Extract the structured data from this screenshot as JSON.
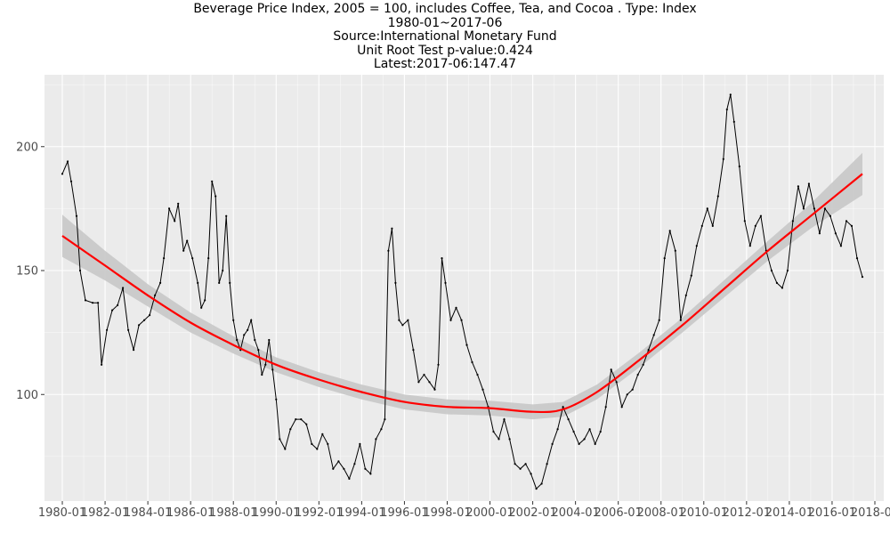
{
  "titles": {
    "line1": "Beverage Price Index, 2005 = 100, includes Coffee, Tea, and Cocoa . Type: Index",
    "line2": "1980-01~2017-06",
    "line3": "Source:International Monetary Fund",
    "line4": "Unit Root Test p-value:0.424",
    "line5": "Latest:2017-06:147.47"
  },
  "colors": {
    "panel": "#ebebeb",
    "grid_major": "#ffffff",
    "series": "#000000",
    "trend": "#ff0000",
    "band": "#c8c8c8"
  },
  "chart_data": {
    "type": "line",
    "title": "Beverage Price Index, 2005 = 100, includes Coffee, Tea, and Cocoa . Type: Index",
    "subtitle": [
      "1980-01~2017-06",
      "Source:International Monetary Fund",
      "Unit Root Test p-value:0.424",
      "Latest:2017-06:147.47"
    ],
    "xlabel": "",
    "ylabel": "",
    "xlim": [
      "1979-03",
      "2018-06"
    ],
    "ylim": [
      57,
      229
    ],
    "x_ticks": [
      "1980-01",
      "1982-01",
      "1984-01",
      "1986-01",
      "1988-01",
      "1990-01",
      "1992-01",
      "1994-01",
      "1996-01",
      "1998-01",
      "2000-01",
      "2002-01",
      "2004-01",
      "2006-01",
      "2008-01",
      "2010-01",
      "2012-01",
      "2014-01",
      "2016-01",
      "2018-01"
    ],
    "y_ticks": [
      100,
      150,
      200
    ],
    "grid": true,
    "series": [
      {
        "points": [
          [
            "1980-01",
            189
          ],
          [
            "1980-04",
            194
          ],
          [
            "1980-06",
            186
          ],
          [
            "1980-09",
            172
          ],
          [
            "1980-11",
            150
          ],
          [
            "1981-02",
            138
          ],
          [
            "1981-06",
            137
          ],
          [
            "1981-09",
            137
          ],
          [
            "1981-11",
            112
          ],
          [
            "1982-02",
            126
          ],
          [
            "1982-05",
            134
          ],
          [
            "1982-08",
            136
          ],
          [
            "1982-11",
            143
          ],
          [
            "1983-02",
            126
          ],
          [
            "1983-05",
            118
          ],
          [
            "1983-08",
            128
          ],
          [
            "1983-11",
            130
          ],
          [
            "1984-02",
            132
          ],
          [
            "1984-05",
            140
          ],
          [
            "1984-08",
            145
          ],
          [
            "1984-10",
            155
          ],
          [
            "1985-01",
            175
          ],
          [
            "1985-04",
            170
          ],
          [
            "1985-06",
            177
          ],
          [
            "1985-09",
            158
          ],
          [
            "1985-11",
            162
          ],
          [
            "1986-02",
            155
          ],
          [
            "1986-05",
            145
          ],
          [
            "1986-07",
            135
          ],
          [
            "1986-09",
            138
          ],
          [
            "1986-11",
            155
          ],
          [
            "1987-01",
            186
          ],
          [
            "1987-03",
            180
          ],
          [
            "1987-05",
            145
          ],
          [
            "1987-07",
            150
          ],
          [
            "1987-09",
            172
          ],
          [
            "1987-11",
            145
          ],
          [
            "1988-01",
            130
          ],
          [
            "1988-03",
            122
          ],
          [
            "1988-05",
            118
          ],
          [
            "1988-07",
            124
          ],
          [
            "1988-09",
            126
          ],
          [
            "1988-11",
            130
          ],
          [
            "1989-01",
            122
          ],
          [
            "1989-03",
            118
          ],
          [
            "1989-05",
            108
          ],
          [
            "1989-07",
            112
          ],
          [
            "1989-09",
            122
          ],
          [
            "1989-11",
            110
          ],
          [
            "1990-01",
            98
          ],
          [
            "1990-03",
            82
          ],
          [
            "1990-06",
            78
          ],
          [
            "1990-09",
            86
          ],
          [
            "1990-12",
            90
          ],
          [
            "1991-03",
            90
          ],
          [
            "1991-06",
            88
          ],
          [
            "1991-09",
            80
          ],
          [
            "1991-12",
            78
          ],
          [
            "1992-03",
            84
          ],
          [
            "1992-06",
            80
          ],
          [
            "1992-09",
            70
          ],
          [
            "1992-12",
            73
          ],
          [
            "1993-03",
            70
          ],
          [
            "1993-06",
            66
          ],
          [
            "1993-09",
            72
          ],
          [
            "1993-12",
            80
          ],
          [
            "1994-03",
            70
          ],
          [
            "1994-06",
            68
          ],
          [
            "1994-09",
            82
          ],
          [
            "1994-12",
            86
          ],
          [
            "1995-02",
            90
          ],
          [
            "1995-04",
            158
          ],
          [
            "1995-06",
            167
          ],
          [
            "1995-08",
            145
          ],
          [
            "1995-10",
            130
          ],
          [
            "1995-12",
            128
          ],
          [
            "1996-03",
            130
          ],
          [
            "1996-06",
            118
          ],
          [
            "1996-09",
            105
          ],
          [
            "1996-12",
            108
          ],
          [
            "1997-03",
            105
          ],
          [
            "1997-06",
            102
          ],
          [
            "1997-08",
            112
          ],
          [
            "1997-10",
            155
          ],
          [
            "1997-12",
            145
          ],
          [
            "1998-03",
            130
          ],
          [
            "1998-06",
            135
          ],
          [
            "1998-09",
            130
          ],
          [
            "1998-12",
            120
          ],
          [
            "1999-03",
            113
          ],
          [
            "1999-06",
            108
          ],
          [
            "1999-09",
            102
          ],
          [
            "1999-12",
            95
          ],
          [
            "2000-03",
            85
          ],
          [
            "2000-06",
            82
          ],
          [
            "2000-09",
            90
          ],
          [
            "2000-12",
            82
          ],
          [
            "2001-03",
            72
          ],
          [
            "2001-06",
            70
          ],
          [
            "2001-09",
            72
          ],
          [
            "2001-12",
            68
          ],
          [
            "2002-03",
            62
          ],
          [
            "2002-06",
            64
          ],
          [
            "2002-09",
            72
          ],
          [
            "2002-12",
            80
          ],
          [
            "2003-03",
            86
          ],
          [
            "2003-06",
            95
          ],
          [
            "2003-09",
            90
          ],
          [
            "2003-12",
            85
          ],
          [
            "2004-03",
            80
          ],
          [
            "2004-06",
            82
          ],
          [
            "2004-09",
            86
          ],
          [
            "2004-12",
            80
          ],
          [
            "2005-03",
            85
          ],
          [
            "2005-06",
            95
          ],
          [
            "2005-09",
            110
          ],
          [
            "2005-12",
            105
          ],
          [
            "2006-03",
            95
          ],
          [
            "2006-06",
            100
          ],
          [
            "2006-09",
            102
          ],
          [
            "2006-12",
            108
          ],
          [
            "2007-03",
            112
          ],
          [
            "2007-06",
            118
          ],
          [
            "2007-09",
            124
          ],
          [
            "2007-12",
            130
          ],
          [
            "2008-03",
            155
          ],
          [
            "2008-06",
            166
          ],
          [
            "2008-09",
            158
          ],
          [
            "2008-12",
            130
          ],
          [
            "2009-03",
            140
          ],
          [
            "2009-06",
            148
          ],
          [
            "2009-09",
            160
          ],
          [
            "2009-12",
            168
          ],
          [
            "2010-03",
            175
          ],
          [
            "2010-06",
            168
          ],
          [
            "2010-09",
            180
          ],
          [
            "2010-12",
            195
          ],
          [
            "2011-02",
            215
          ],
          [
            "2011-04",
            221
          ],
          [
            "2011-06",
            210
          ],
          [
            "2011-09",
            192
          ],
          [
            "2011-12",
            170
          ],
          [
            "2012-03",
            160
          ],
          [
            "2012-06",
            168
          ],
          [
            "2012-09",
            172
          ],
          [
            "2012-12",
            158
          ],
          [
            "2013-03",
            150
          ],
          [
            "2013-06",
            145
          ],
          [
            "2013-09",
            143
          ],
          [
            "2013-12",
            150
          ],
          [
            "2014-03",
            170
          ],
          [
            "2014-06",
            184
          ],
          [
            "2014-09",
            175
          ],
          [
            "2014-12",
            185
          ],
          [
            "2015-03",
            175
          ],
          [
            "2015-06",
            165
          ],
          [
            "2015-09",
            175
          ],
          [
            "2015-12",
            172
          ],
          [
            "2016-03",
            165
          ],
          [
            "2016-06",
            160
          ],
          [
            "2016-09",
            170
          ],
          [
            "2016-12",
            168
          ],
          [
            "2017-03",
            155
          ],
          [
            "2017-06",
            147.47
          ]
        ]
      }
    ],
    "trend": {
      "type": "loess",
      "points": [
        [
          "1980-01",
          164
        ],
        [
          "1982-01",
          152
        ],
        [
          "1984-01",
          140
        ],
        [
          "1986-01",
          129
        ],
        [
          "1988-01",
          120
        ],
        [
          "1990-01",
          112
        ],
        [
          "1992-01",
          106
        ],
        [
          "1994-01",
          101
        ],
        [
          "1996-01",
          97
        ],
        [
          "1998-01",
          95
        ],
        [
          "2000-01",
          94.5
        ],
        [
          "2002-01",
          93
        ],
        [
          "2003-06",
          94
        ],
        [
          "2005-01",
          101
        ],
        [
          "2007-01",
          114
        ],
        [
          "2009-01",
          128
        ],
        [
          "2011-01",
          143
        ],
        [
          "2013-01",
          158
        ],
        [
          "2015-01",
          172
        ],
        [
          "2017-06",
          189
        ]
      ],
      "band_half_width": [
        8.5,
        6,
        4.5,
        4,
        3.5,
        3,
        3,
        3,
        3,
        3,
        3,
        3,
        3,
        3,
        3,
        3,
        3.5,
        4,
        5,
        8.5
      ]
    }
  }
}
